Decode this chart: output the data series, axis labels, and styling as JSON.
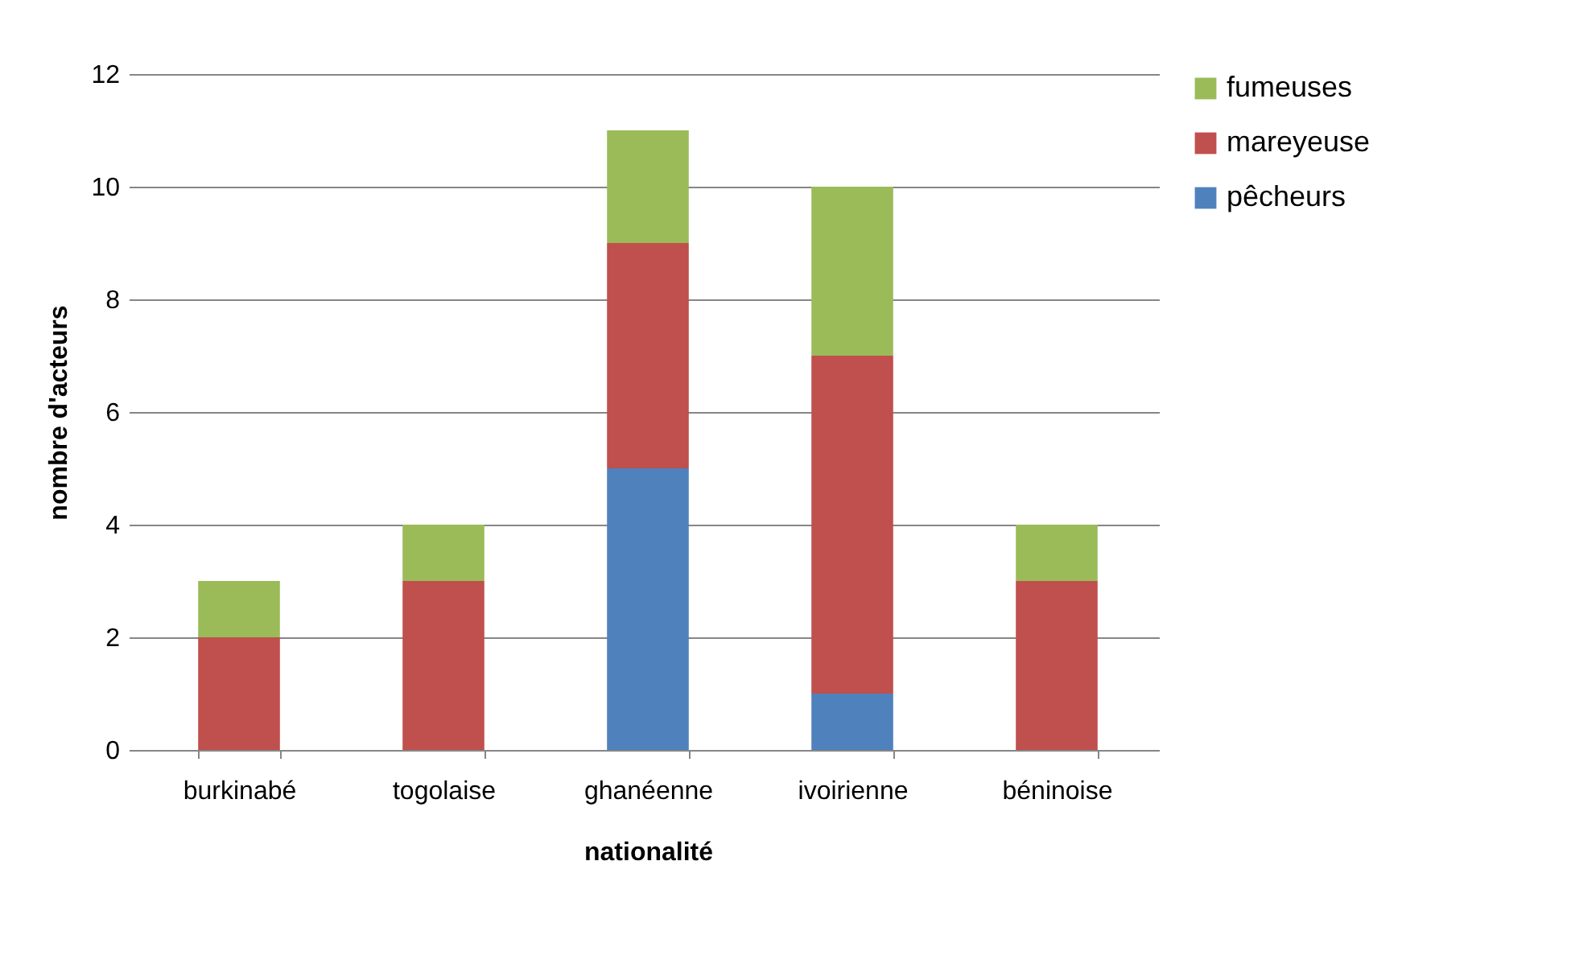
{
  "chart_data": {
    "type": "bar",
    "stacked": true,
    "xlabel": "nationalité",
    "ylabel": "nombre d'acteurs",
    "categories": [
      "burkinabé",
      "togolaise",
      "ghanéenne",
      "ivoirienne",
      "béninoise"
    ],
    "series": [
      {
        "name": "pêcheurs",
        "color": "#4f81bd",
        "values": [
          0,
          0,
          5,
          1,
          0
        ]
      },
      {
        "name": "mareyeuse",
        "color": "#c0504d",
        "values": [
          2,
          3,
          4,
          6,
          3
        ]
      },
      {
        "name": "fumeuses",
        "color": "#9bbb59",
        "values": [
          1,
          1,
          2,
          3,
          1
        ]
      }
    ],
    "ylim": [
      0,
      12
    ],
    "yticks": [
      0,
      2,
      4,
      6,
      8,
      10,
      12
    ],
    "grid": "y",
    "legend": "right"
  }
}
